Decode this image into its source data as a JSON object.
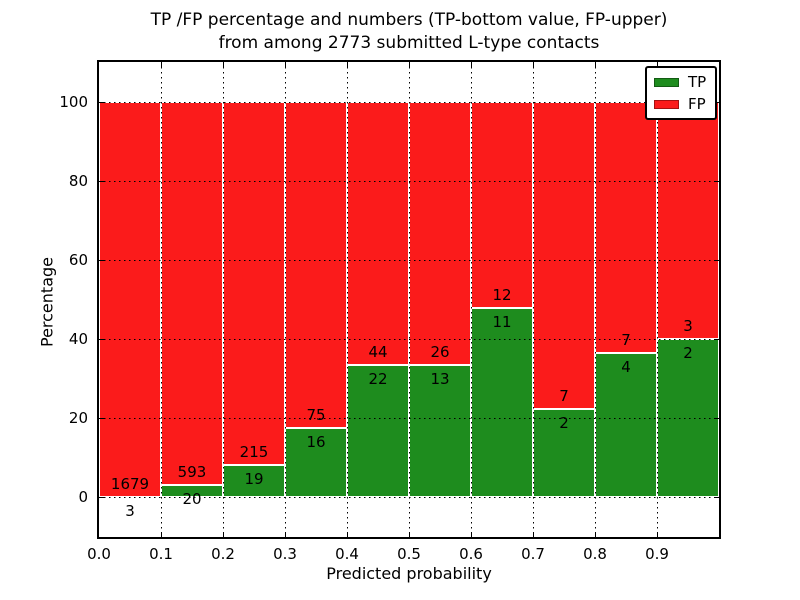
{
  "title": {
    "line1": "TP /FP percentage and numbers (TP-bottom value, FP-upper)",
    "line2": "from among 2773 submitted L-type contacts"
  },
  "chart_data": {
    "type": "bar",
    "subtype": "stacked-100-percent",
    "title": "TP /FP percentage and numbers (TP-bottom value, FP-upper) from among 2773 submitted L-type contacts",
    "xlabel": "Predicted probability",
    "ylabel": "Percentage",
    "total_submitted_contacts": 2773,
    "xlim": [
      0.0,
      1.0
    ],
    "ylim": [
      -10,
      110
    ],
    "grid": true,
    "x_tick_labels": [
      "0.0",
      "0.1",
      "0.2",
      "0.3",
      "0.4",
      "0.5",
      "0.6",
      "0.7",
      "0.8",
      "0.9"
    ],
    "y_ticks": [
      0,
      20,
      40,
      60,
      80,
      100
    ],
    "legend": {
      "position": "upper-right",
      "entries": [
        {
          "label": "TP",
          "color": "#1e8c1e"
        },
        {
          "label": "FP",
          "color": "#fb1b1b"
        }
      ]
    },
    "colors": {
      "tp": "#1e8c1e",
      "fp": "#fb1b1b",
      "grid": "#000000",
      "background": "#ffffff"
    },
    "bins": [
      {
        "range": [
          0.0,
          0.1
        ],
        "tp": 3,
        "fp": 1679,
        "tp_pct": 0.18
      },
      {
        "range": [
          0.1,
          0.2
        ],
        "tp": 20,
        "fp": 593,
        "tp_pct": 3.26
      },
      {
        "range": [
          0.2,
          0.3
        ],
        "tp": 19,
        "fp": 215,
        "tp_pct": 8.12
      },
      {
        "range": [
          0.3,
          0.4
        ],
        "tp": 16,
        "fp": 75,
        "tp_pct": 17.58
      },
      {
        "range": [
          0.4,
          0.5
        ],
        "tp": 22,
        "fp": 44,
        "tp_pct": 33.33
      },
      {
        "range": [
          0.5,
          0.6
        ],
        "tp": 13,
        "fp": 26,
        "tp_pct": 33.33
      },
      {
        "range": [
          0.6,
          0.7
        ],
        "tp": 11,
        "fp": 12,
        "tp_pct": 47.83
      },
      {
        "range": [
          0.7,
          0.8
        ],
        "tp": 2,
        "fp": 7,
        "tp_pct": 22.22
      },
      {
        "range": [
          0.8,
          0.9
        ],
        "tp": 4,
        "fp": 7,
        "tp_pct": 36.36
      },
      {
        "range": [
          0.9,
          1.0
        ],
        "tp": 2,
        "fp": 3,
        "tp_pct": 40.0
      }
    ]
  }
}
